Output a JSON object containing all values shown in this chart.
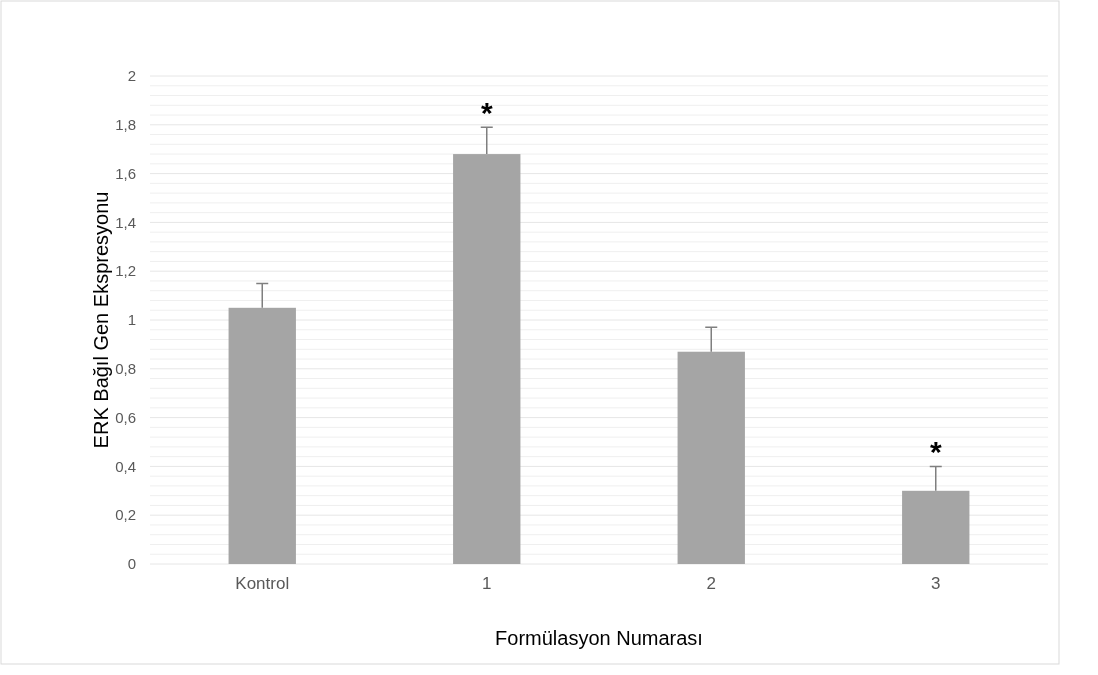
{
  "chart_data": {
    "type": "bar",
    "xlabel": "Formülasyon Numarası",
    "ylabel": "ERK Bağıl Gen Ekspresyonu",
    "categories": [
      "Kontrol",
      "1",
      "2",
      "3"
    ],
    "values": [
      1.05,
      1.68,
      0.87,
      0.3
    ],
    "errors": [
      [
        1.05,
        1.15
      ],
      [
        1.68,
        1.79
      ],
      [
        0.87,
        0.97
      ],
      [
        0.3,
        0.4
      ]
    ],
    "color": "#a5a5a5",
    "ylim": [
      0,
      2
    ],
    "yticks": [
      0,
      {
        "value": 0.04,
        "label": null
      },
      {
        "value": 0.08,
        "label": null
      },
      {
        "value": 0.12,
        "label": null
      },
      {
        "value": 0.16,
        "label": null
      },
      {
        "value": 0.2,
        "label": "0,2"
      },
      {
        "value": 0.24,
        "label": null
      },
      {
        "value": 0.28,
        "label": null
      },
      {
        "value": 0.32,
        "label": null
      },
      {
        "value": 0.36,
        "label": null
      },
      {
        "value": 0.4,
        "label": "0,4"
      },
      {
        "value": 0.44,
        "label": null
      },
      {
        "value": 0.48,
        "label": null
      },
      {
        "value": 0.52,
        "label": null
      },
      {
        "value": 0.56,
        "label": null
      },
      {
        "value": 0.6,
        "label": "0,6"
      },
      {
        "value": 0.64,
        "label": null
      },
      {
        "value": 0.68,
        "label": null
      },
      {
        "value": 0.72,
        "label": null
      },
      {
        "value": 0.76,
        "label": null
      },
      {
        "value": 0.8,
        "label": "0,8"
      },
      {
        "value": 0.84,
        "label": null
      },
      {
        "value": 0.88,
        "label": null
      },
      {
        "value": 0.92,
        "label": null
      },
      {
        "value": 0.96,
        "label": null
      },
      1,
      {
        "value": 1.04,
        "label": null
      },
      {
        "value": 1.08,
        "label": null
      },
      {
        "value": 1.12,
        "label": null
      },
      {
        "value": 1.16,
        "label": null
      },
      {
        "value": 1.2,
        "label": "1,2"
      },
      {
        "value": 1.24,
        "label": null
      },
      {
        "value": 1.28,
        "label": null
      },
      {
        "value": 1.32,
        "label": null
      },
      {
        "value": 1.36,
        "label": null
      },
      {
        "value": 1.4,
        "label": "1,4"
      },
      {
        "value": 1.44,
        "label": null
      },
      {
        "value": 1.48,
        "label": null
      },
      {
        "value": 1.52,
        "label": null
      },
      {
        "value": 1.56,
        "label": null
      },
      {
        "value": 1.6,
        "label": "1,6"
      },
      {
        "value": 1.64,
        "label": null
      },
      {
        "value": 1.68,
        "label": null
      },
      {
        "value": 1.72,
        "label": null
      },
      {
        "value": 1.76,
        "label": null
      },
      {
        "value": 1.8,
        "label": "1,8"
      },
      {
        "value": 1.84,
        "label": null
      },
      {
        "value": 1.88,
        "label": null
      },
      {
        "value": 1.92,
        "label": null
      },
      {
        "value": 1.96,
        "label": null
      },
      2
    ],
    "grid": "y",
    "annotations": [
      {
        "text": "*",
        "x": "1",
        "y": 1.79
      },
      {
        "text": "*",
        "x": "3",
        "y": 0.4
      }
    ]
  }
}
